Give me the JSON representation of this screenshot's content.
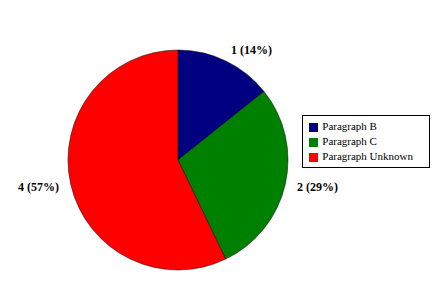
{
  "chart_data": {
    "type": "pie",
    "categories": [
      "Paragraph B",
      "Paragraph C",
      "Paragraph Unknown"
    ],
    "values": [
      1,
      2,
      4
    ],
    "value_labels": [
      "1 (14%)",
      "2 (29%)",
      "4 (57%)"
    ],
    "colors": [
      "#000080",
      "#008000",
      "#ff0000"
    ],
    "data_labels": true,
    "legend": "right"
  }
}
